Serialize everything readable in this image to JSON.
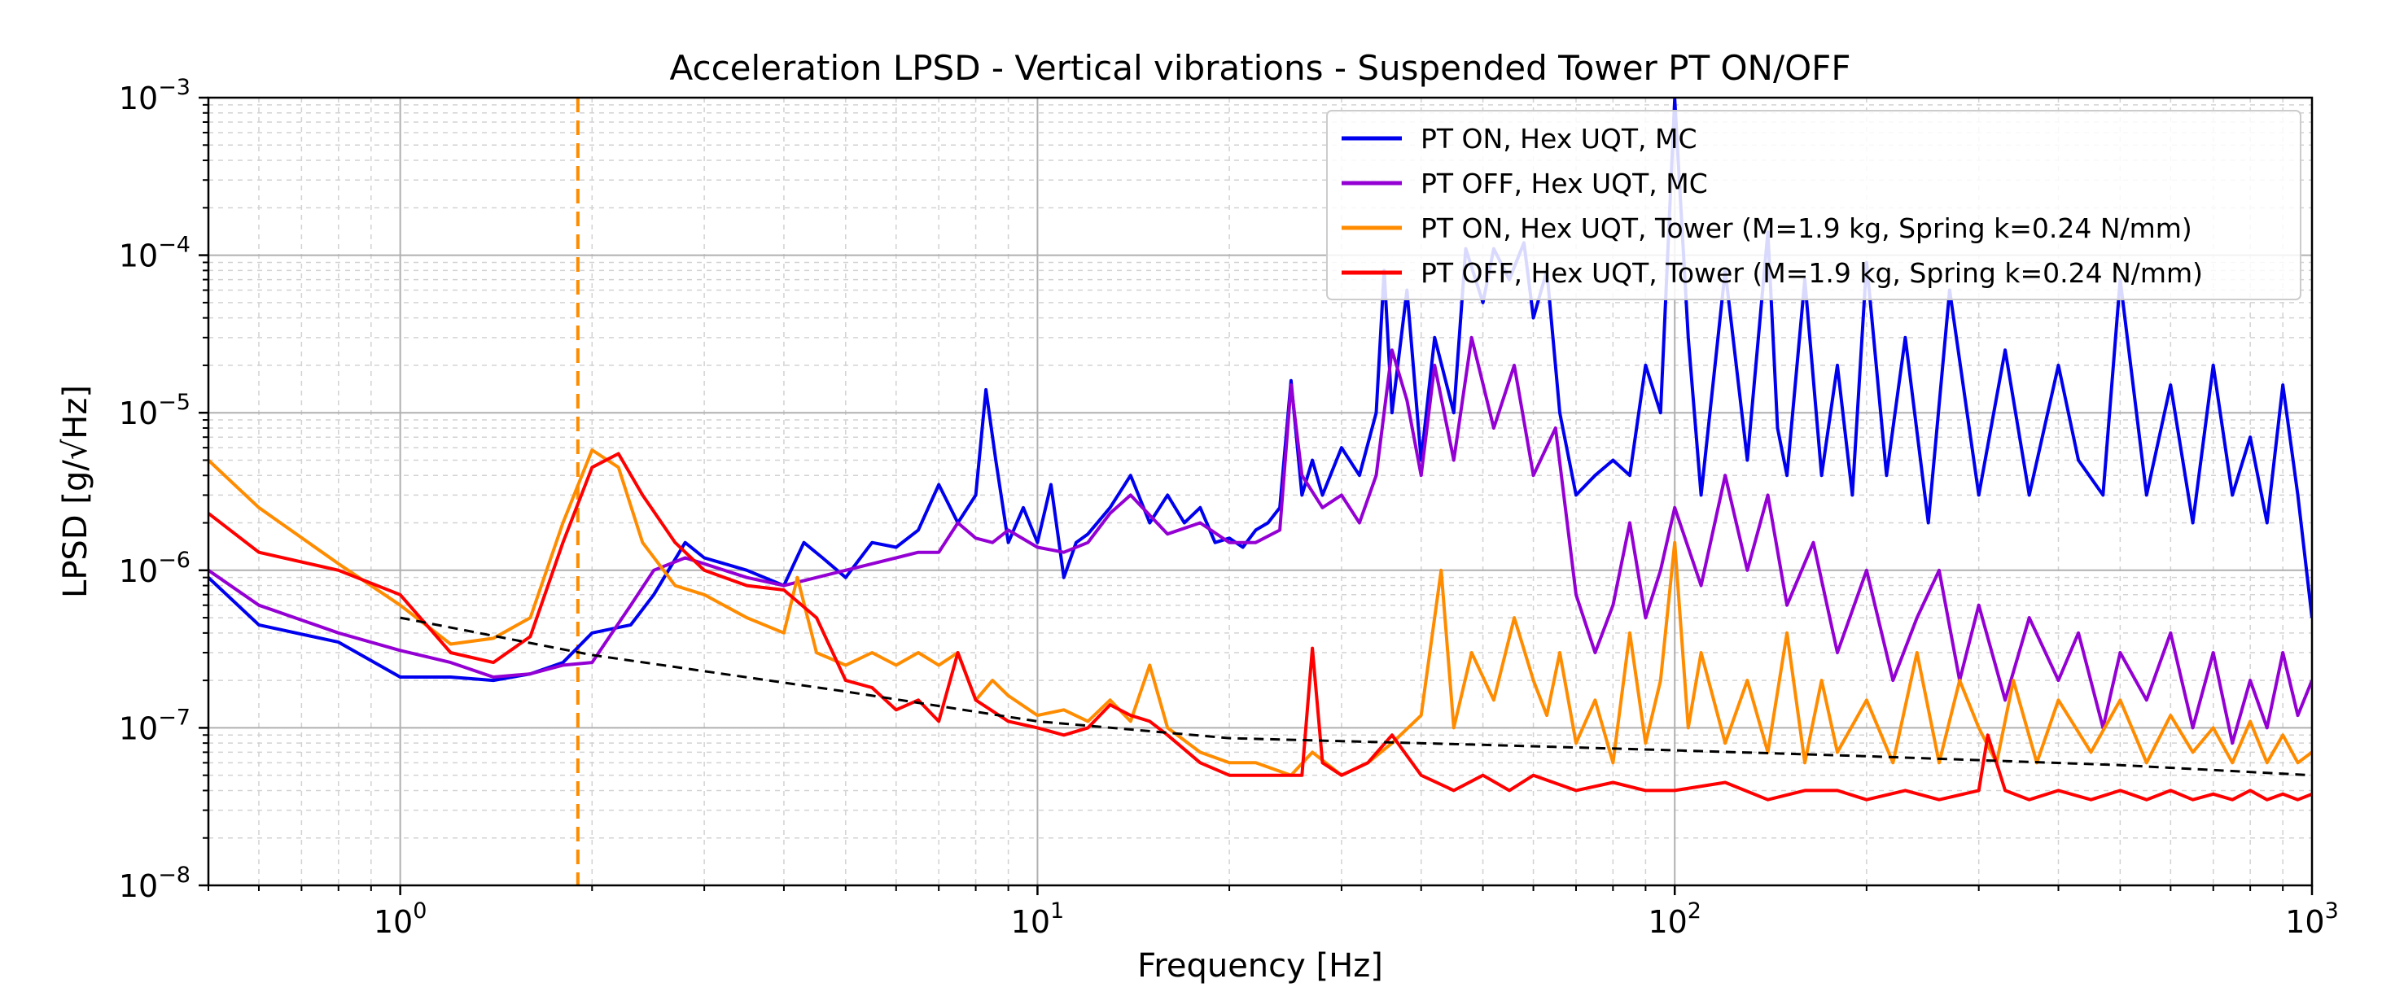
{
  "chart_data": {
    "type": "line",
    "title": "Acceleration LPSD - Vertical vibrations - Suspended Tower PT ON/OFF",
    "xlabel": "Frequency [Hz]",
    "ylabel": "LPSD [g/√Hz]",
    "xscale": "log",
    "yscale": "log",
    "xlim": [
      0.5,
      1000
    ],
    "ylim": [
      1e-08,
      0.001
    ],
    "grid": true,
    "legend_position": "top-right",
    "x_ticks": [
      {
        "value": 1,
        "label": "10",
        "exp": "0"
      },
      {
        "value": 10,
        "label": "10",
        "exp": "1"
      },
      {
        "value": 100,
        "label": "10",
        "exp": "2"
      },
      {
        "value": 1000,
        "label": "10",
        "exp": "3"
      }
    ],
    "y_ticks": [
      {
        "value": 1e-08,
        "label": "10",
        "exp": "−8"
      },
      {
        "value": 1e-07,
        "label": "10",
        "exp": "−7"
      },
      {
        "value": 1e-06,
        "label": "10",
        "exp": "−6"
      },
      {
        "value": 1e-05,
        "label": "10",
        "exp": "−5"
      },
      {
        "value": 0.0001,
        "label": "10",
        "exp": "−4"
      },
      {
        "value": 0.001,
        "label": "10",
        "exp": "−3"
      }
    ],
    "vline": {
      "x": 1.9,
      "color": "#ff8c00",
      "style": "dashed"
    },
    "series": [
      {
        "name": "PT ON,  Hex UQT, MC",
        "color": "#0000ee",
        "x": [
          0.5,
          0.6,
          0.8,
          1.0,
          1.2,
          1.4,
          1.6,
          1.8,
          2.0,
          2.3,
          2.5,
          2.8,
          3.0,
          3.5,
          4.0,
          4.3,
          4.6,
          5.0,
          5.5,
          6.0,
          6.5,
          7.0,
          7.5,
          8.0,
          8.3,
          8.6,
          9.0,
          9.5,
          10.0,
          10.5,
          11.0,
          11.5,
          12.0,
          13.0,
          14.0,
          15.0,
          16.0,
          17.0,
          18.0,
          19.0,
          20.0,
          21.0,
          22.0,
          23.0,
          24.0,
          25.0,
          26.0,
          27.0,
          28.0,
          30.0,
          32.0,
          34.0,
          35.0,
          36.0,
          38.0,
          40.0,
          42.0,
          45.0,
          47.0,
          50.0,
          52.0,
          55.0,
          58.0,
          60.0,
          63.0,
          66.0,
          70.0,
          75.0,
          80.0,
          85.0,
          90.0,
          95.0,
          100.0,
          105.0,
          110.0,
          120.0,
          130.0,
          140.0,
          145.0,
          150.0,
          160.0,
          170.0,
          180.0,
          190.0,
          200.0,
          215.0,
          230.0,
          250.0,
          270.0,
          300.0,
          330.0,
          360.0,
          400.0,
          430.0,
          470.0,
          500.0,
          550.0,
          600.0,
          650.0,
          700.0,
          750.0,
          800.0,
          850.0,
          900.0,
          950.0,
          1000.0
        ],
        "y": [
          9e-07,
          4.5e-07,
          3.5e-07,
          2.1e-07,
          2.1e-07,
          2e-07,
          2.2e-07,
          2.6e-07,
          4e-07,
          4.5e-07,
          7e-07,
          1.5e-06,
          1.2e-06,
          1e-06,
          8e-07,
          1.5e-06,
          1.2e-06,
          9e-07,
          1.5e-06,
          1.4e-06,
          1.8e-06,
          3.5e-06,
          2e-06,
          3e-06,
          1.4e-05,
          5e-06,
          1.5e-06,
          2.5e-06,
          1.5e-06,
          3.5e-06,
          9e-07,
          1.5e-06,
          1.7e-06,
          2.5e-06,
          4e-06,
          2e-06,
          3e-06,
          2e-06,
          2.5e-06,
          1.5e-06,
          1.6e-06,
          1.4e-06,
          1.8e-06,
          2e-06,
          2.5e-06,
          1.6e-05,
          3e-06,
          5e-06,
          3e-06,
          6e-06,
          4e-06,
          1e-05,
          8e-05,
          1e-05,
          6e-05,
          5e-06,
          3e-05,
          1e-05,
          0.00011,
          5e-05,
          0.00011,
          7e-05,
          0.00012,
          4e-05,
          8e-05,
          1e-05,
          3e-06,
          4e-06,
          5e-06,
          4e-06,
          2e-05,
          1e-05,
          0.00098,
          3e-05,
          3e-06,
          8e-05,
          5e-06,
          0.00014,
          8e-06,
          4e-06,
          7e-05,
          4e-06,
          2e-05,
          3e-06,
          9e-05,
          4e-06,
          3e-05,
          2e-06,
          6e-05,
          3e-06,
          2.5e-05,
          3e-06,
          2e-05,
          5e-06,
          3e-06,
          7e-05,
          3e-06,
          1.5e-05,
          2e-06,
          2e-05,
          3e-06,
          7e-06,
          2e-06,
          1.5e-05,
          3e-06,
          5e-07
        ]
      },
      {
        "name": "PT OFF, Hex UQT, MC",
        "color": "#9400d3",
        "x": [
          0.5,
          0.6,
          0.8,
          1.0,
          1.2,
          1.4,
          1.6,
          1.8,
          2.0,
          2.3,
          2.5,
          2.8,
          3.0,
          3.5,
          4.0,
          4.5,
          5.0,
          5.5,
          6.0,
          6.5,
          7.0,
          7.5,
          8.0,
          8.5,
          9.0,
          10.0,
          11.0,
          12.0,
          13.0,
          14.0,
          16.0,
          18.0,
          20.0,
          22.0,
          24.0,
          25.0,
          26.0,
          28.0,
          30.0,
          32.0,
          34.0,
          36.0,
          38.0,
          40.0,
          42.0,
          45.0,
          48.0,
          52.0,
          56.0,
          60.0,
          65.0,
          70.0,
          75.0,
          80.0,
          85.0,
          90.0,
          95.0,
          100.0,
          110.0,
          120.0,
          130.0,
          140.0,
          150.0,
          165.0,
          180.0,
          200.0,
          220.0,
          240.0,
          260.0,
          280.0,
          300.0,
          330.0,
          360.0,
          400.0,
          430.0,
          470.0,
          500.0,
          550.0,
          600.0,
          650.0,
          700.0,
          750.0,
          800.0,
          850.0,
          900.0,
          950.0,
          1000.0
        ],
        "y": [
          1e-06,
          6e-07,
          4e-07,
          3.1e-07,
          2.6e-07,
          2.1e-07,
          2.2e-07,
          2.5e-07,
          2.6e-07,
          6e-07,
          1e-06,
          1.2e-06,
          1.1e-06,
          9e-07,
          8e-07,
          9e-07,
          1e-06,
          1.1e-06,
          1.2e-06,
          1.3e-06,
          1.3e-06,
          2e-06,
          1.6e-06,
          1.5e-06,
          1.8e-06,
          1.4e-06,
          1.3e-06,
          1.5e-06,
          2.3e-06,
          3e-06,
          1.7e-06,
          2e-06,
          1.5e-06,
          1.5e-06,
          1.8e-06,
          1.5e-05,
          4e-06,
          2.5e-06,
          3e-06,
          2e-06,
          4e-06,
          2.5e-05,
          1.2e-05,
          4e-06,
          2e-05,
          5e-06,
          3e-05,
          8e-06,
          2e-05,
          4e-06,
          8e-06,
          7e-07,
          3e-07,
          6e-07,
          2e-06,
          5e-07,
          1e-06,
          2.5e-06,
          8e-07,
          4e-06,
          1e-06,
          3e-06,
          6e-07,
          1.5e-06,
          3e-07,
          1e-06,
          2e-07,
          5e-07,
          1e-06,
          2e-07,
          6e-07,
          1.5e-07,
          5e-07,
          2e-07,
          4e-07,
          1e-07,
          3e-07,
          1.5e-07,
          4e-07,
          1e-07,
          3e-07,
          8e-08,
          2e-07,
          1e-07,
          3e-07,
          1.2e-07,
          2e-07
        ]
      },
      {
        "name": "PT ON,  Hex UQT, Tower (M=1.9 kg, Spring k=0.24 N/mm)",
        "color": "#ff8c00",
        "x": [
          0.5,
          0.6,
          0.8,
          1.0,
          1.2,
          1.4,
          1.6,
          1.8,
          2.0,
          2.2,
          2.4,
          2.7,
          3.0,
          3.5,
          4.0,
          4.2,
          4.5,
          5.0,
          5.5,
          6.0,
          6.5,
          7.0,
          7.5,
          8.0,
          8.5,
          9.0,
          10.0,
          11.0,
          12.0,
          13.0,
          14.0,
          15.0,
          16.0,
          18.0,
          20.0,
          22.0,
          25.0,
          27.0,
          30.0,
          33.0,
          36.0,
          40.0,
          43.0,
          45.0,
          48.0,
          52.0,
          56.0,
          60.0,
          63.0,
          66.0,
          70.0,
          75.0,
          80.0,
          85.0,
          90.0,
          95.0,
          100.0,
          105.0,
          110.0,
          120.0,
          130.0,
          140.0,
          150.0,
          160.0,
          170.0,
          180.0,
          200.0,
          220.0,
          240.0,
          260.0,
          280.0,
          300.0,
          320.0,
          340.0,
          370.0,
          400.0,
          450.0,
          500.0,
          550.0,
          600.0,
          650.0,
          700.0,
          750.0,
          800.0,
          850.0,
          900.0,
          950.0,
          1000.0
        ],
        "y": [
          5e-06,
          2.5e-06,
          1.1e-06,
          6e-07,
          3.4e-07,
          3.7e-07,
          5e-07,
          2e-06,
          5.8e-06,
          4.5e-06,
          1.5e-06,
          8e-07,
          7e-07,
          5e-07,
          4e-07,
          9e-07,
          3e-07,
          2.5e-07,
          3e-07,
          2.5e-07,
          3e-07,
          2.5e-07,
          3e-07,
          1.5e-07,
          2e-07,
          1.6e-07,
          1.2e-07,
          1.3e-07,
          1.1e-07,
          1.5e-07,
          1.1e-07,
          2.5e-07,
          1e-07,
          7e-08,
          6e-08,
          6e-08,
          5e-08,
          7e-08,
          5e-08,
          6e-08,
          8e-08,
          1.2e-07,
          1e-06,
          1e-07,
          3e-07,
          1.5e-07,
          5e-07,
          2e-07,
          1.2e-07,
          3e-07,
          8e-08,
          1.5e-07,
          6e-08,
          4e-07,
          8e-08,
          2e-07,
          1.5e-06,
          1e-07,
          3e-07,
          8e-08,
          2e-07,
          7e-08,
          4e-07,
          6e-08,
          2e-07,
          7e-08,
          1.5e-07,
          6e-08,
          3e-07,
          6e-08,
          2e-07,
          1e-07,
          6e-08,
          2e-07,
          6e-08,
          1.5e-07,
          7e-08,
          1.5e-07,
          6e-08,
          1.2e-07,
          7e-08,
          1e-07,
          6e-08,
          1.1e-07,
          6e-08,
          9e-08,
          6e-08,
          7e-08
        ]
      },
      {
        "name": "PT OFF, Hex UQT, Tower (M=1.9 kg, Spring k=0.24 N/mm)",
        "color": "#ff0000",
        "x": [
          0.5,
          0.6,
          0.8,
          1.0,
          1.2,
          1.4,
          1.6,
          1.8,
          2.0,
          2.2,
          2.4,
          2.7,
          3.0,
          3.5,
          4.0,
          4.5,
          5.0,
          5.5,
          6.0,
          6.5,
          7.0,
          7.5,
          8.0,
          9.0,
          10.0,
          11.0,
          12.0,
          13.0,
          14.0,
          15.0,
          16.0,
          18.0,
          20.0,
          23.0,
          26.0,
          27.0,
          28.0,
          30.0,
          33.0,
          36.0,
          40.0,
          45.0,
          50.0,
          55.0,
          60.0,
          70.0,
          80.0,
          90.0,
          100.0,
          120.0,
          140.0,
          160.0,
          180.0,
          200.0,
          230.0,
          260.0,
          300.0,
          310.0,
          330.0,
          360.0,
          400.0,
          450.0,
          500.0,
          550.0,
          600.0,
          650.0,
          700.0,
          750.0,
          800.0,
          850.0,
          900.0,
          950.0,
          1000.0
        ],
        "y": [
          2.3e-06,
          1.3e-06,
          1e-06,
          7e-07,
          3e-07,
          2.6e-07,
          3.8e-07,
          1.5e-06,
          4.5e-06,
          5.5e-06,
          3e-06,
          1.5e-06,
          1e-06,
          8e-07,
          7.5e-07,
          5e-07,
          2e-07,
          1.8e-07,
          1.3e-07,
          1.5e-07,
          1.1e-07,
          3e-07,
          1.5e-07,
          1.1e-07,
          1e-07,
          9e-08,
          1e-07,
          1.4e-07,
          1.2e-07,
          1.1e-07,
          9e-08,
          6e-08,
          5e-08,
          5e-08,
          5e-08,
          3.2e-07,
          6e-08,
          5e-08,
          6e-08,
          9e-08,
          5e-08,
          4e-08,
          5e-08,
          4e-08,
          5e-08,
          4e-08,
          4.5e-08,
          4e-08,
          4e-08,
          4.5e-08,
          3.5e-08,
          4e-08,
          4e-08,
          3.5e-08,
          4e-08,
          3.5e-08,
          4e-08,
          9e-08,
          4e-08,
          3.5e-08,
          4e-08,
          3.5e-08,
          4e-08,
          3.5e-08,
          4e-08,
          3.5e-08,
          3.8e-08,
          3.5e-08,
          4e-08,
          3.5e-08,
          3.8e-08,
          3.5e-08,
          3.8e-08
        ]
      }
    ],
    "fit_line": {
      "color": "#000000",
      "style": "dashed",
      "x": [
        1.0,
        2.0,
        5.0,
        10.0,
        20.0,
        50.0,
        100.0,
        200.0,
        500.0,
        1000.0
      ],
      "y": [
        5e-07,
        2.9e-07,
        1.7e-07,
        1.1e-07,
        8.6e-08,
        7.8e-08,
        7.2e-08,
        6.6e-08,
        5.8e-08,
        5e-08
      ]
    }
  }
}
